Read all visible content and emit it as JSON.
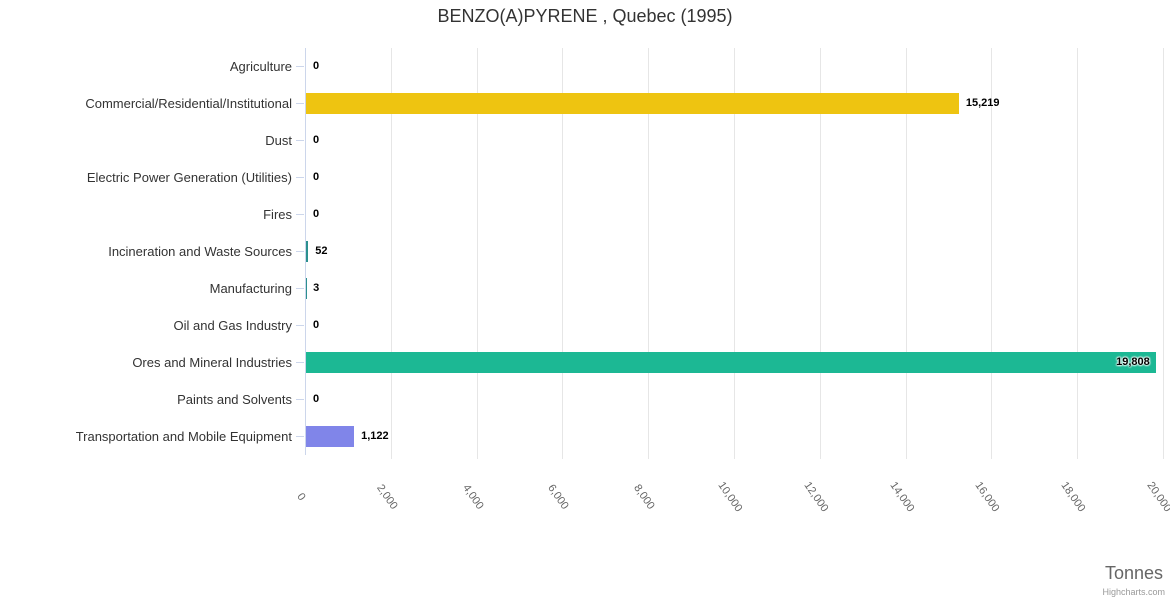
{
  "chart": {
    "title": "BENZO(A)PYRENE , Quebec (1995)",
    "x_axis_title": "Tonnes",
    "credits": "Highcharts.com"
  },
  "chart_data": {
    "type": "bar",
    "orientation": "horizontal",
    "title": "BENZO(A)PYRENE , Quebec (1995)",
    "xlabel": "Tonnes",
    "ylabel": "",
    "legend": false,
    "grid": true,
    "value_axis": {
      "min": 0,
      "max": 20000,
      "tick_interval": 2000,
      "tick_labels": [
        "0",
        "2,000",
        "4,000",
        "6,000",
        "8,000",
        "10,000",
        "12,000",
        "14,000",
        "16,000",
        "18,000",
        "20,000"
      ]
    },
    "categories": [
      "Agriculture",
      "Commercial/Residential/Institutional",
      "Dust",
      "Electric Power Generation (Utilities)",
      "Fires",
      "Incineration and Waste Sources",
      "Manufacturing",
      "Oil and Gas Industry",
      "Ores and Mineral Industries",
      "Paints and Solvents",
      "Transportation and Mobile Equipment"
    ],
    "values": [
      0,
      15219,
      0,
      0,
      0,
      52,
      3,
      0,
      19808,
      0,
      1122
    ],
    "value_labels": [
      "0",
      "15,219",
      "0",
      "0",
      "0",
      "52",
      "3",
      "0",
      "19,808",
      "0",
      "1,122"
    ],
    "point_colors": [
      null,
      "#EEC411",
      null,
      null,
      null,
      "#2B908F",
      "#2B908F",
      null,
      "#1CB894",
      null,
      "#8085E9"
    ],
    "colors": {
      "gridline": "#e6e6e6",
      "axis_line": "#ccd6eb",
      "title_text": "#333333",
      "category_text": "#333333",
      "tick_text": "#666666",
      "data_label_text": "#000000"
    }
  }
}
